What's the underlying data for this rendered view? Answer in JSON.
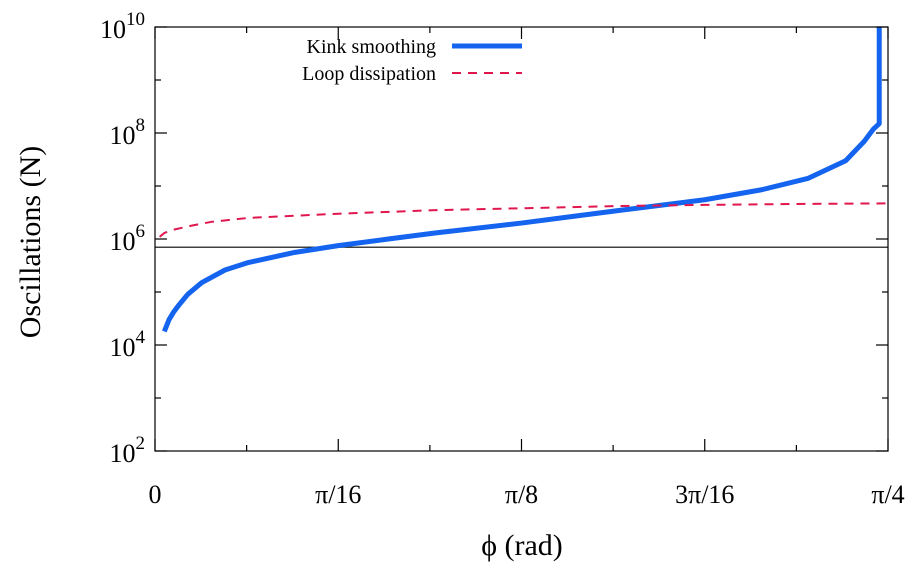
{
  "chart_data": {
    "type": "line",
    "title": "",
    "xlabel": "ϕ (rad)",
    "ylabel": "Oscillations (N)",
    "xlim": [
      0,
      0.7853981634
    ],
    "ylim": [
      100,
      10000000000
    ],
    "yscale": "log",
    "grid": false,
    "legend_position": "top-right",
    "x_ticks": [
      {
        "value": 0,
        "label": "0"
      },
      {
        "value": 0.1963495408,
        "label": "π/16"
      },
      {
        "value": 0.3926990817,
        "label": "π/8"
      },
      {
        "value": 0.5890486225,
        "label": "3π/16"
      },
      {
        "value": 0.7853981634,
        "label": "π/4"
      }
    ],
    "x_minor_ticks": [
      0.0981747704,
      0.2945243113,
      0.4908738521,
      0.687223393
    ],
    "y_ticks": [
      {
        "value": 100,
        "base": "10",
        "exp": "2"
      },
      {
        "value": 10000,
        "base": "10",
        "exp": "4"
      },
      {
        "value": 1000000,
        "base": "10",
        "exp": "6"
      },
      {
        "value": 100000000,
        "base": "10",
        "exp": "8"
      },
      {
        "value": 10000000000,
        "base": "10",
        "exp": "10"
      }
    ],
    "y_minor_ticks": [
      1000,
      100000,
      10000000,
      1000000000
    ],
    "reference_line": {
      "y": 700000
    },
    "series": [
      {
        "name": "Kink smoothing",
        "color": "#1464f0",
        "style": "solid",
        "points": [
          [
            0.01,
            18000
          ],
          [
            0.015,
            30000
          ],
          [
            0.02,
            42000
          ],
          [
            0.025,
            55000
          ],
          [
            0.035,
            90000
          ],
          [
            0.05,
            150000
          ],
          [
            0.075,
            260000
          ],
          [
            0.1,
            360000
          ],
          [
            0.15,
            560000
          ],
          [
            0.1963,
            750000
          ],
          [
            0.25,
            1000000
          ],
          [
            0.3,
            1300000
          ],
          [
            0.3927,
            2000000
          ],
          [
            0.45,
            2700000
          ],
          [
            0.5,
            3500000
          ],
          [
            0.589,
            5500000
          ],
          [
            0.65,
            8500000
          ],
          [
            0.7,
            14000000
          ],
          [
            0.74,
            30000000
          ],
          [
            0.76,
            70000000
          ],
          [
            0.77,
            120000000
          ],
          [
            0.776,
            150000000
          ],
          [
            0.776,
            10000000000
          ]
        ]
      },
      {
        "name": "Loop dissipation",
        "color": "#e0174f",
        "style": "dashed",
        "points": [
          [
            0.005,
            1100000
          ],
          [
            0.01,
            1300000
          ],
          [
            0.02,
            1500000
          ],
          [
            0.04,
            1800000
          ],
          [
            0.06,
            2100000
          ],
          [
            0.1,
            2500000
          ],
          [
            0.1963,
            3000000
          ],
          [
            0.3,
            3500000
          ],
          [
            0.3927,
            3800000
          ],
          [
            0.5,
            4200000
          ],
          [
            0.589,
            4400000
          ],
          [
            0.7,
            4600000
          ],
          [
            0.7854,
            4700000
          ]
        ]
      }
    ]
  }
}
